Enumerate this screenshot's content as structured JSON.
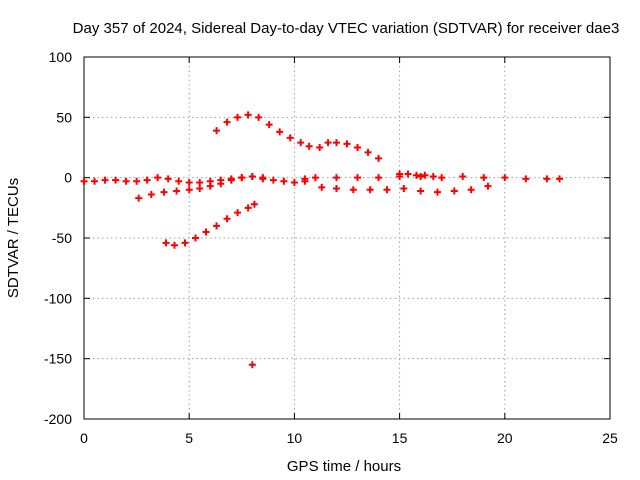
{
  "chart_data": {
    "type": "scatter",
    "title": "Day 357 of 2024, Sidereal Day-to-day VTEC variation (SDTVAR) for receiver dae3",
    "xlabel": "GPS time / hours",
    "ylabel": "SDTVAR / TECUs",
    "xlim": [
      0,
      25
    ],
    "ylim": [
      -200,
      100
    ],
    "xticks": [
      0,
      5,
      10,
      15,
      20,
      25
    ],
    "yticks": [
      -200,
      -150,
      -100,
      -50,
      0,
      50,
      100
    ],
    "xtick_labels": [
      "0",
      "5",
      "10",
      "15",
      "20",
      "25"
    ],
    "ytick_labels": [
      "-200",
      "-150",
      "-100",
      "-50",
      "0",
      "50",
      "100"
    ],
    "grid": true,
    "marker": "+",
    "color": "#ff0000",
    "series": [
      {
        "name": "track-main-zero",
        "x": [
          0.0,
          0.5,
          1.0,
          1.5,
          2.0,
          2.5,
          3.0,
          3.5,
          4.0,
          4.5,
          5.0,
          5.5,
          6.0,
          6.5,
          7.0,
          7.5,
          8.0,
          8.5,
          9.0,
          9.5,
          10.0,
          10.5
        ],
        "y": [
          -3,
          -3,
          -2,
          -2,
          -3,
          -3,
          -2,
          0,
          -1,
          -3,
          -4,
          -4,
          -3,
          -2,
          -1,
          0,
          1,
          0,
          -2,
          -3,
          -4,
          -3
        ]
      },
      {
        "name": "track-zero-long",
        "x": [
          10.5,
          11.0,
          12.0,
          13.0,
          14.0,
          15.0,
          16.0,
          17.0,
          18.0,
          19.0,
          20.0,
          21.0,
          22.0,
          22.6
        ],
        "y": [
          -1,
          0,
          0,
          0,
          0,
          1,
          1,
          0,
          1,
          0,
          0,
          -1,
          -1,
          -1
        ]
      },
      {
        "name": "track-upper-arc-1",
        "x": [
          6.3,
          6.8,
          7.3,
          7.8,
          8.3,
          8.8,
          9.3,
          9.8,
          10.3,
          10.7
        ],
        "y": [
          39,
          46,
          50,
          52,
          50,
          44,
          38,
          33,
          29,
          26
        ]
      },
      {
        "name": "track-upper-arc-2",
        "x": [
          11.2,
          11.6,
          12.0,
          12.5,
          13.0,
          13.5,
          14.0
        ],
        "y": [
          25,
          29,
          29,
          28,
          25,
          21,
          16
        ]
      },
      {
        "name": "track-rising-1",
        "x": [
          2.6,
          3.2,
          3.8,
          4.4,
          5.0,
          5.5,
          6.0,
          6.5,
          7.0,
          7.5,
          8.0,
          8.5
        ],
        "y": [
          -17,
          -14,
          -12,
          -11,
          -10,
          -9,
          -7,
          -5,
          -2,
          0,
          1,
          -1
        ]
      },
      {
        "name": "track-rising-2",
        "x": [
          3.9,
          4.3,
          4.8,
          5.3,
          5.8,
          6.3,
          6.8,
          7.3,
          7.8,
          8.1
        ],
        "y": [
          -54,
          -56,
          -54,
          -50,
          -45,
          -40,
          -34,
          -29,
          -25,
          -22
        ]
      },
      {
        "name": "track-lower-flat",
        "x": [
          11.3,
          12.0,
          12.8,
          13.6,
          14.4,
          15.2,
          16.0,
          16.8,
          17.6,
          18.4,
          19.2
        ],
        "y": [
          -8,
          -9,
          -10,
          -10,
          -10,
          -9,
          -11,
          -12,
          -11,
          -10,
          -7
        ]
      },
      {
        "name": "track-zero-short",
        "x": [
          15.0,
          15.4,
          15.8,
          16.2,
          16.6
        ],
        "y": [
          3,
          3,
          2,
          2,
          1
        ]
      },
      {
        "name": "outlier",
        "x": [
          8.0
        ],
        "y": [
          -155
        ]
      }
    ]
  }
}
